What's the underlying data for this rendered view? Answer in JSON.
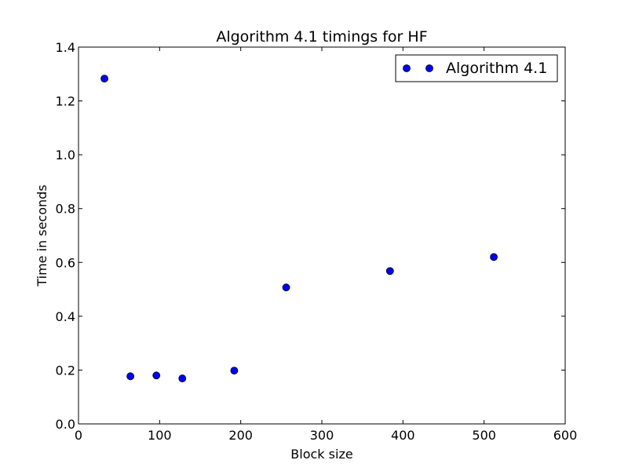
{
  "chart_data": {
    "type": "scatter",
    "title": "Algorithm 4.1 timings for HF",
    "xlabel": "Block size",
    "ylabel": "Time in seconds",
    "xlim": [
      0,
      600
    ],
    "ylim": [
      0.0,
      1.4
    ],
    "xticks": [
      0,
      100,
      200,
      300,
      400,
      500,
      600
    ],
    "xtick_labels": [
      "0",
      "100",
      "200",
      "300",
      "400",
      "500",
      "600"
    ],
    "yticks": [
      0.0,
      0.2,
      0.4,
      0.6,
      0.8,
      1.0,
      1.2,
      1.4
    ],
    "ytick_labels": [
      "0.0",
      "0.2",
      "0.4",
      "0.6",
      "0.8",
      "1.0",
      "1.2",
      "1.4"
    ],
    "grid": false,
    "legend_position": "top-right",
    "series": [
      {
        "name": "Algorithm 4.1",
        "color": "#0000ff",
        "marker": "circle",
        "x": [
          32,
          64,
          96,
          128,
          192,
          256,
          384,
          512
        ],
        "y": [
          1.283,
          0.177,
          0.18,
          0.169,
          0.198,
          0.507,
          0.568,
          0.62
        ]
      }
    ]
  }
}
